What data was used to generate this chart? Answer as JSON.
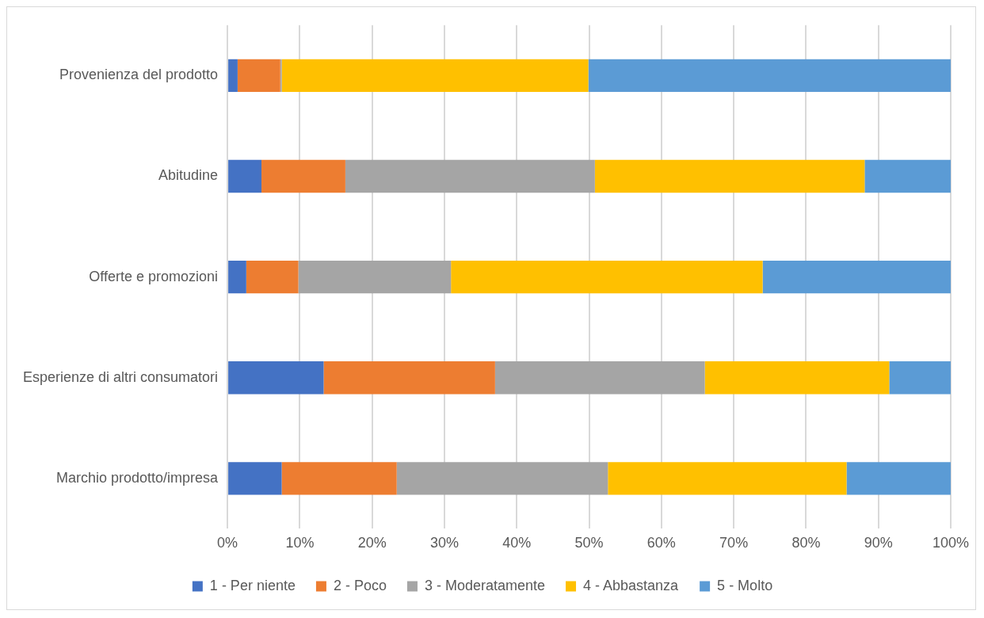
{
  "chart_data": {
    "type": "bar",
    "orientation": "horizontal",
    "stacked": true,
    "categories": [
      "Provenienza del prodotto",
      "Abitudine",
      "Offerte e promozioni",
      "Esperienze di altri consumatori",
      "Marchio prodotto/impresa"
    ],
    "series": [
      {
        "name": "1 - Per niente",
        "color": "#4472c4",
        "values": [
          1.4,
          4.7,
          2.6,
          13.3,
          7.5
        ]
      },
      {
        "name": "2 - Poco",
        "color": "#ed7d31",
        "values": [
          5.9,
          11.6,
          7.2,
          23.7,
          15.9
        ]
      },
      {
        "name": "3 - Moderatamente",
        "color": "#a5a5a5",
        "values": [
          0.2,
          34.5,
          21.1,
          29.0,
          29.2
        ]
      },
      {
        "name": "4 - Abbastanza",
        "color": "#ffc000",
        "values": [
          42.4,
          37.3,
          43.1,
          25.5,
          33.0
        ]
      },
      {
        "name": "5 - Molto",
        "color": "#5b9bd5",
        "values": [
          50.1,
          11.9,
          26.0,
          8.5,
          14.4
        ]
      }
    ],
    "xlim": [
      0,
      100
    ],
    "xticks": [
      {
        "value": 0,
        "label": "0%"
      },
      {
        "value": 10,
        "label": "10%"
      },
      {
        "value": 20,
        "label": "20%"
      },
      {
        "value": 30,
        "label": "30%"
      },
      {
        "value": 40,
        "label": "40%"
      },
      {
        "value": 50,
        "label": "50%"
      },
      {
        "value": 60,
        "label": "60%"
      },
      {
        "value": 70,
        "label": "70%"
      },
      {
        "value": 80,
        "label": "80%"
      },
      {
        "value": 90,
        "label": "90%"
      },
      {
        "value": 100,
        "label": "100%"
      }
    ],
    "grid": "x",
    "legend": "bottom"
  }
}
